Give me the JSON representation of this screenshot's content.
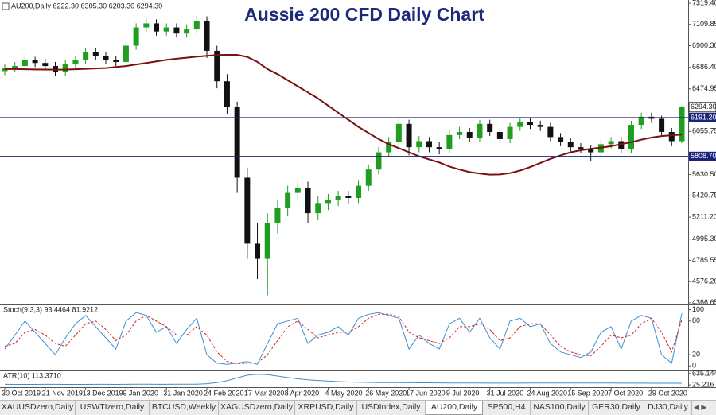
{
  "chart_data": [
    {
      "type": "candlestick",
      "title": "Aussie 200 CFD Daily Chart",
      "label": "AU200,Daily  6222.30 6305.30 6203.30 6294.30",
      "categories": [
        "30 Oct 2019",
        null,
        null,
        null,
        "21 Nov 2019",
        null,
        null,
        null,
        "13 Dec 2019",
        null,
        null,
        null,
        "9 Jan 2020",
        null,
        null,
        null,
        "31 Jan 2020",
        null,
        null,
        null,
        "24 Feb 2020",
        null,
        null,
        null,
        "17 Mar 2020",
        null,
        null,
        null,
        "8 Apr 2020",
        null,
        null,
        null,
        "4 May 2020",
        null,
        null,
        null,
        "26 May 2020",
        null,
        null,
        null,
        "17 Jun 2020",
        null,
        null,
        null,
        "9 Jul 2020",
        null,
        null,
        null,
        "31 Jul 2020",
        null,
        null,
        null,
        "24 Aug 2020",
        null,
        null,
        null,
        "15 Sep 2020",
        null,
        null,
        null,
        "7 Oct 2020",
        null,
        null,
        null,
        "29 Oct 2020",
        null,
        null,
        null
      ],
      "open": [
        6650,
        6680,
        6700,
        6760,
        6730,
        6700,
        6640,
        6720,
        6760,
        6840,
        6800,
        6760,
        6740,
        6900,
        7080,
        7120,
        7040,
        7080,
        7020,
        7060,
        7140,
        6850,
        6550,
        6300,
        5600,
        4950,
        4800,
        5150,
        5300,
        5450,
        5500,
        5250,
        5350,
        5380,
        5420,
        5400,
        5520,
        5680,
        5850,
        5950,
        6130,
        5900,
        5960,
        5900,
        5880,
        6020,
        6050,
        5990,
        6130,
        6050,
        5980,
        6100,
        6150,
        6120,
        6100,
        6000,
        5950,
        5900,
        5880,
        5850,
        5930,
        5960,
        5880,
        6120,
        6200,
        6180,
        6050,
        5960
      ],
      "high": [
        6720,
        6740,
        6800,
        6790,
        6770,
        6740,
        6760,
        6800,
        6880,
        6880,
        6840,
        6800,
        6940,
        7120,
        7160,
        7160,
        7120,
        7120,
        7110,
        7200,
        7190,
        6900,
        6620,
        6350,
        5700,
        5150,
        5250,
        5380,
        5520,
        5580,
        5560,
        5420,
        5440,
        5470,
        5470,
        5570,
        5730,
        5900,
        6000,
        6190,
        6170,
        6010,
        6000,
        5950,
        6070,
        6100,
        6090,
        6170,
        6170,
        6090,
        6140,
        6190,
        6190,
        6160,
        6140,
        6040,
        5990,
        5940,
        5920,
        5980,
        6000,
        6000,
        6160,
        6240,
        6240,
        6210,
        6090,
        6305.3
      ],
      "low": [
        6610,
        6640,
        6660,
        6690,
        6660,
        6600,
        6600,
        6680,
        6720,
        6760,
        6720,
        6700,
        6700,
        6860,
        7040,
        7000,
        7000,
        6980,
        6980,
        7020,
        6780,
        6480,
        6230,
        5450,
        4800,
        4600,
        4440,
        5050,
        5220,
        5380,
        5150,
        5180,
        5280,
        5320,
        5340,
        5350,
        5470,
        5630,
        5800,
        5900,
        5820,
        5850,
        5850,
        5830,
        5840,
        5980,
        5950,
        5950,
        6010,
        5940,
        5940,
        6060,
        6080,
        6060,
        5960,
        5910,
        5860,
        5840,
        5760,
        5810,
        5890,
        5840,
        5840,
        6080,
        6140,
        6010,
        5910,
        5940
      ],
      "close": [
        6680,
        6700,
        6760,
        6730,
        6700,
        6640,
        6720,
        6760,
        6840,
        6800,
        6760,
        6740,
        6900,
        7080,
        7120,
        7040,
        7080,
        7020,
        7060,
        7140,
        6850,
        6550,
        6300,
        5600,
        4950,
        4800,
        5150,
        5300,
        5450,
        5500,
        5250,
        5350,
        5380,
        5420,
        5400,
        5520,
        5680,
        5850,
        5950,
        6130,
        5900,
        5960,
        5900,
        5880,
        6020,
        6050,
        5990,
        6130,
        6050,
        5980,
        6100,
        6150,
        6120,
        6100,
        6000,
        5950,
        5900,
        5880,
        5850,
        5930,
        5960,
        5880,
        6120,
        6200,
        6180,
        6050,
        5960,
        6294.3
      ],
      "up_color": "#1f9e1f",
      "down_color": "#111111",
      "overlay": {
        "color": "#7a1010",
        "values": [
          6670,
          6670,
          6668,
          6666,
          6665,
          6664,
          6665,
          6668,
          6672,
          6676,
          6680,
          6690,
          6700,
          6715,
          6730,
          6745,
          6760,
          6772,
          6782,
          6792,
          6800,
          6808,
          6810,
          6810,
          6790,
          6740,
          6670,
          6620,
          6560,
          6500,
          6440,
          6380,
          6310,
          6240,
          6170,
          6100,
          6040,
          5980,
          5930,
          5890,
          5850,
          5810,
          5780,
          5750,
          5710,
          5680,
          5655,
          5640,
          5630,
          5632,
          5645,
          5670,
          5705,
          5745,
          5785,
          5820,
          5850,
          5870,
          5885,
          5895,
          5910,
          5930,
          5950,
          5975,
          5995,
          6010,
          6018,
          6025
        ]
      },
      "levels": [
        {
          "value": 6191.2,
          "label": "6191.20",
          "color": "#1a237e"
        },
        {
          "value": 5808.7,
          "label": "5808.70",
          "color": "#1a237e"
        }
      ],
      "last_price": {
        "value": 6294.3,
        "label": "6294.30"
      },
      "ylim": [
        4350,
        7335
      ],
      "yticks": [
        {
          "value": 7319.4,
          "label": "7319.40"
        },
        {
          "value": 7109.85,
          "label": "7109.85"
        },
        {
          "value": 6900.3,
          "label": "6900.30"
        },
        {
          "value": 6686.4,
          "label": "6686.40"
        },
        {
          "value": 6474.95,
          "label": "6474.95"
        },
        6055.75,
        {
          "value": 5630.5,
          "label": "5630.50"
        },
        5420.75,
        {
          "value": 5211.2,
          "label": "5211.20"
        },
        {
          "value": 4995.3,
          "label": "4995.30"
        },
        4785.55,
        {
          "value": 4576.2,
          "label": "4576.20"
        },
        4366.65
      ]
    },
    {
      "type": "line",
      "label": "Stoch(9,3,3) 93.4464 81.9212",
      "lines": [
        {
          "color": "#3b8fd1",
          "dash": false,
          "values": [
            30,
            55,
            80,
            60,
            40,
            20,
            50,
            75,
            90,
            70,
            50,
            30,
            80,
            95,
            90,
            60,
            70,
            40,
            65,
            85,
            20,
            5,
            3,
            5,
            8,
            3,
            40,
            75,
            80,
            85,
            40,
            55,
            60,
            70,
            55,
            85,
            92,
            95,
            90,
            85,
            30,
            55,
            40,
            30,
            75,
            85,
            60,
            85,
            50,
            30,
            80,
            85,
            70,
            75,
            40,
            25,
            20,
            15,
            25,
            60,
            70,
            30,
            80,
            90,
            85,
            20,
            5,
            93.4464
          ]
        },
        {
          "color": "#d42020",
          "dash": true,
          "values": [
            35,
            40,
            60,
            65,
            55,
            40,
            35,
            55,
            75,
            80,
            65,
            45,
            55,
            80,
            90,
            80,
            70,
            55,
            55,
            70,
            55,
            25,
            8,
            4,
            5,
            5,
            20,
            45,
            70,
            80,
            65,
            50,
            55,
            60,
            60,
            70,
            85,
            92,
            92,
            88,
            60,
            50,
            45,
            40,
            50,
            70,
            70,
            75,
            65,
            45,
            50,
            70,
            75,
            75,
            55,
            35,
            25,
            20,
            18,
            35,
            55,
            50,
            55,
            75,
            85,
            60,
            25,
            81.9212
          ]
        }
      ],
      "ylim": [
        -8,
        108
      ],
      "yticks": [
        100,
        80,
        20,
        0
      ]
    },
    {
      "type": "line",
      "label": "ATR(10) 113.3710",
      "lines": [
        {
          "color": "#3b8fd1",
          "dash": false,
          "values": [
            55,
            52,
            50,
            52,
            55,
            55,
            50,
            50,
            52,
            55,
            55,
            52,
            55,
            60,
            58,
            55,
            55,
            58,
            60,
            65,
            90,
            150,
            250,
            400,
            550,
            600,
            580,
            500,
            420,
            350,
            300,
            260,
            230,
            200,
            180,
            170,
            160,
            150,
            150,
            145,
            140,
            138,
            135,
            132,
            130,
            128,
            125,
            122,
            120,
            118,
            118,
            120,
            122,
            125,
            125,
            128,
            130,
            130,
            128,
            125,
            122,
            120,
            118,
            118,
            116,
            115,
            114,
            113.371
          ]
        }
      ],
      "ylim": [
        -100,
        760
      ],
      "yticks": [
        635.144,
        25.216
      ]
    }
  ],
  "tabs": [
    "XAUUSDzero,Daily",
    "USWTIzero,Daily",
    "BTCUSD,Weekly",
    "XAGUSDzero,Daily",
    "XRPUSD,Daily",
    "USDIndex,Daily",
    "AU200,Daily",
    "SP500,H4",
    "NAS100,Daily",
    "GER30,Daily",
    "DJ30,Daily"
  ],
  "active_tab": 6
}
